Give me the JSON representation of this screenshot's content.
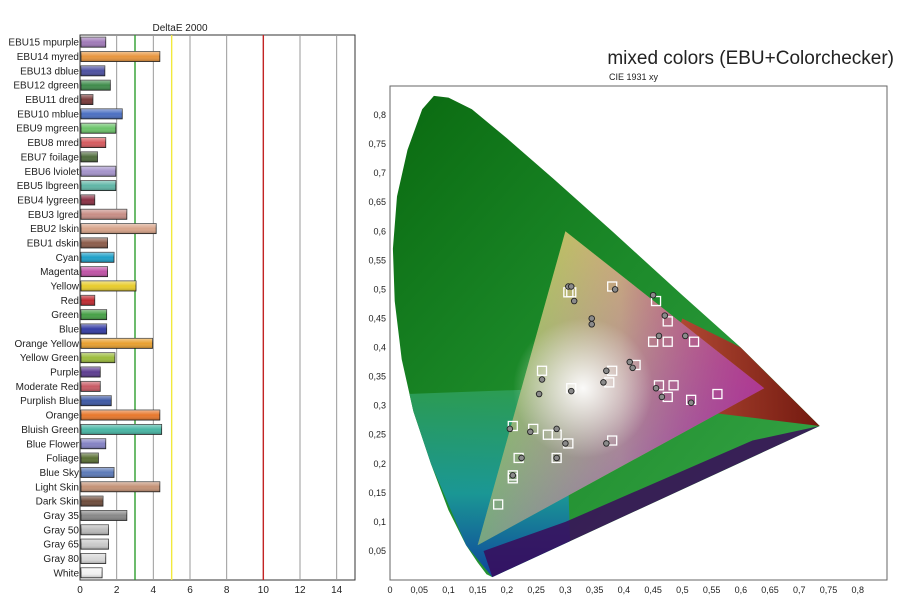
{
  "chart_data": [
    {
      "type": "bar",
      "title": "DeltaE 2000",
      "xlim": [
        0,
        15
      ],
      "xticks": [
        0,
        2,
        4,
        6,
        8,
        10,
        12,
        14
      ],
      "grid": true,
      "reference_lines": [
        {
          "value": 3,
          "color": "#2e9e2e"
        },
        {
          "value": 5,
          "color": "#f2ea3c"
        },
        {
          "value": 10,
          "color": "#c42424"
        }
      ],
      "categories": [
        "EBU15 mpurple",
        "EBU14 myred",
        "EBU13 dblue",
        "EBU12 dgreen",
        "EBU11 dred",
        "EBU10 mblue",
        "EBU9 mgreen",
        "EBU8 mred",
        "EBU7 foilage",
        "EBU6 lviolet",
        "EBU5 lbgreen",
        "EBU4 lygreen",
        "EBU3 lgred",
        "EBU2 lskin",
        "EBU1 dskin",
        "Cyan",
        "Magenta",
        "Yellow",
        "Red",
        "Green",
        "Blue",
        "Orange Yellow",
        "Yellow Green",
        "Purple",
        "Moderate Red",
        "Purplish Blue",
        "Orange",
        "Bluish Green",
        "Blue Flower",
        "Foliage",
        "Blue Sky",
        "Light Skin",
        "Dark Skin",
        "Gray 35",
        "Gray 50",
        "Gray 65",
        "Gray 80",
        "White"
      ],
      "values": [
        1.35,
        4.3,
        1.3,
        1.6,
        0.65,
        2.25,
        1.9,
        1.35,
        0.9,
        1.9,
        1.9,
        0.75,
        2.5,
        4.1,
        1.45,
        1.8,
        1.45,
        3.0,
        0.75,
        1.4,
        1.4,
        3.9,
        1.85,
        1.05,
        1.05,
        1.65,
        4.3,
        4.4,
        1.35,
        0.95,
        1.8,
        4.3,
        1.2,
        2.5,
        1.5,
        1.5,
        1.35,
        1.15
      ],
      "colors": [
        "#a07ab8",
        "#e8953e",
        "#4b4fa0",
        "#3f8c4c",
        "#7a3a3a",
        "#4b6fc2",
        "#6cc46a",
        "#d65a5e",
        "#4f6b3c",
        "#a594cc",
        "#5fb6a6",
        "#8a3044",
        "#c88e86",
        "#d8a48a",
        "#8c5c4a",
        "#1ea0c8",
        "#c052a6",
        "#e8cc2c",
        "#c02a32",
        "#46a046",
        "#343ca4",
        "#e8a030",
        "#9cbc3c",
        "#5c3c90",
        "#c85a64",
        "#3c58a4",
        "#e8782c",
        "#48b6a4",
        "#8482c4",
        "#5a7034",
        "#5c7ab8",
        "#c49276",
        "#6e4c3c",
        "#888888",
        "#bcbcbc",
        "#cacaca",
        "#d8d8d8",
        "#f2f2f2"
      ]
    },
    {
      "type": "scatter",
      "title": "mixed colors (EBU+Colorchecker)",
      "subtitle": "CIE 1931 xy",
      "xlim": [
        0,
        0.85
      ],
      "ylim": [
        0,
        0.85
      ],
      "xticks": [
        "0",
        "0,05",
        "0,1",
        "0,15",
        "0,2",
        "0,25",
        "0,3",
        "0,35",
        "0,4",
        "0,45",
        "0,5",
        "0,55",
        "0,6",
        "0,65",
        "0,7",
        "0,75",
        "0,8"
      ],
      "yticks": [
        "0,05",
        "0,1",
        "0,15",
        "0,2",
        "0,25",
        "0,3",
        "0,35",
        "0,4",
        "0,45",
        "0,5",
        "0,55",
        "0,6",
        "0,65",
        "0,7",
        "0,75",
        "0,8"
      ],
      "gamut_triangle": [
        [
          0.64,
          0.33
        ],
        [
          0.3,
          0.6
        ],
        [
          0.15,
          0.06
        ]
      ],
      "series": [
        {
          "marker": "square",
          "points": [
            [
              0.305,
              0.495
            ],
            [
              0.31,
              0.495
            ],
            [
              0.38,
              0.505
            ],
            [
              0.455,
              0.48
            ],
            [
              0.475,
              0.445
            ],
            [
              0.45,
              0.41
            ],
            [
              0.475,
              0.41
            ],
            [
              0.52,
              0.41
            ],
            [
              0.31,
              0.33
            ],
            [
              0.42,
              0.37
            ],
            [
              0.38,
              0.36
            ],
            [
              0.375,
              0.34
            ],
            [
              0.26,
              0.36
            ],
            [
              0.46,
              0.335
            ],
            [
              0.485,
              0.335
            ],
            [
              0.475,
              0.315
            ],
            [
              0.515,
              0.31
            ],
            [
              0.56,
              0.32
            ],
            [
              0.21,
              0.265
            ],
            [
              0.245,
              0.26
            ],
            [
              0.27,
              0.25
            ],
            [
              0.285,
              0.25
            ],
            [
              0.305,
              0.235
            ],
            [
              0.38,
              0.24
            ],
            [
              0.22,
              0.21
            ],
            [
              0.285,
              0.21
            ],
            [
              0.21,
              0.18
            ],
            [
              0.21,
              0.175
            ],
            [
              0.185,
              0.13
            ]
          ]
        },
        {
          "marker": "circle",
          "points": [
            [
              0.305,
              0.505
            ],
            [
              0.31,
              0.505
            ],
            [
              0.315,
              0.48
            ],
            [
              0.385,
              0.5
            ],
            [
              0.45,
              0.49
            ],
            [
              0.47,
              0.455
            ],
            [
              0.345,
              0.45
            ],
            [
              0.345,
              0.44
            ],
            [
              0.46,
              0.42
            ],
            [
              0.505,
              0.42
            ],
            [
              0.41,
              0.375
            ],
            [
              0.415,
              0.365
            ],
            [
              0.37,
              0.36
            ],
            [
              0.365,
              0.34
            ],
            [
              0.31,
              0.325
            ],
            [
              0.26,
              0.345
            ],
            [
              0.255,
              0.32
            ],
            [
              0.455,
              0.33
            ],
            [
              0.465,
              0.315
            ],
            [
              0.515,
              0.305
            ],
            [
              0.205,
              0.26
            ],
            [
              0.24,
              0.255
            ],
            [
              0.285,
              0.26
            ],
            [
              0.3,
              0.235
            ],
            [
              0.37,
              0.235
            ],
            [
              0.225,
              0.21
            ],
            [
              0.285,
              0.21
            ],
            [
              0.21,
              0.18
            ]
          ]
        }
      ]
    }
  ]
}
